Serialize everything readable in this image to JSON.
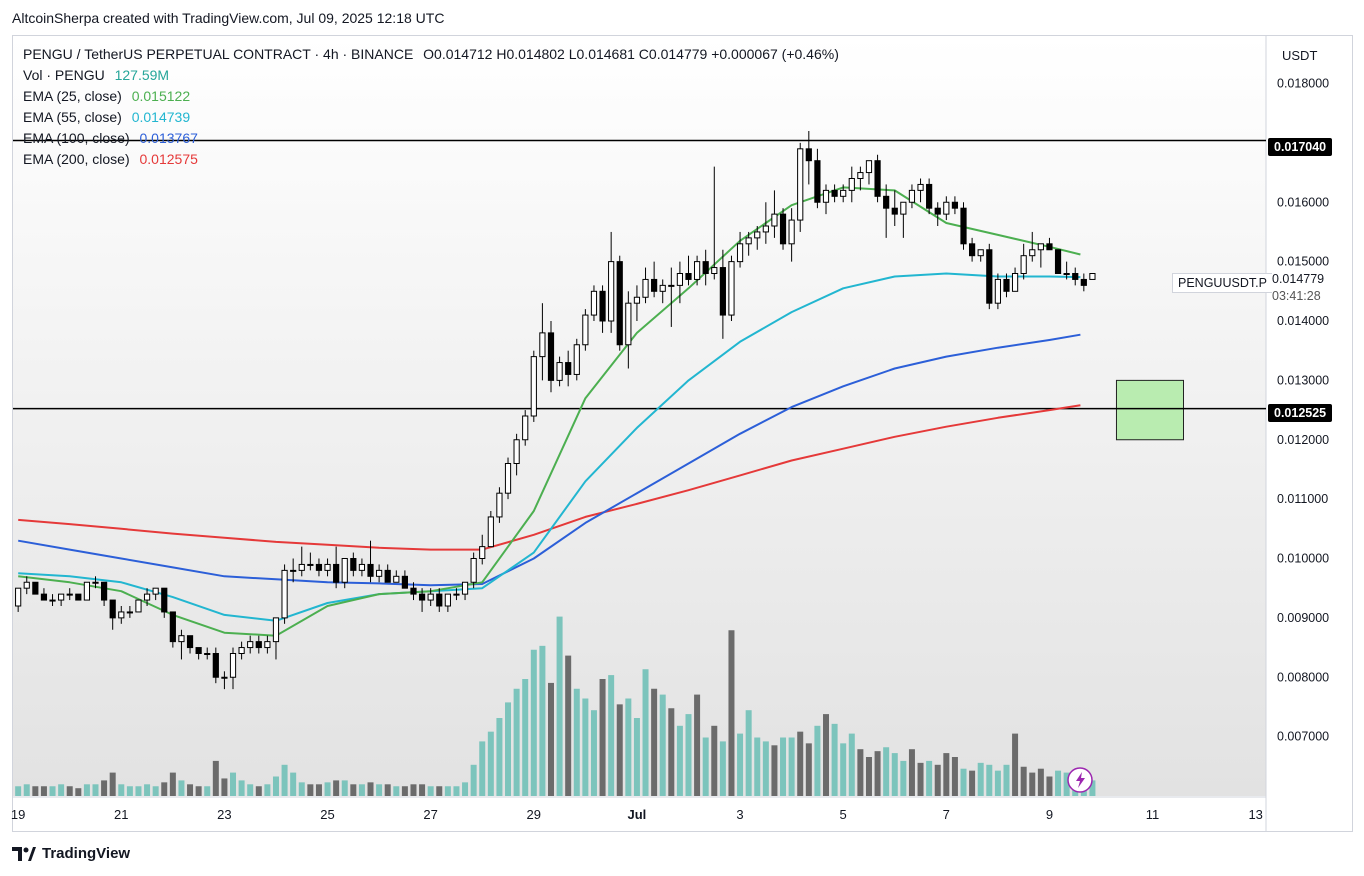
{
  "header": {
    "attribution": "AltcoinSherpa created with TradingView.com, Jul 09, 2025 12:18 UTC"
  },
  "legend": {
    "title": "PENGU / TetherUS PERPETUAL CONTRACT · 4h · BINANCE",
    "ohlc": "O0.014712  H0.014802  L0.014681  C0.014779  +0.000067 (+0.46%)",
    "volume_label": "Vol · PENGU",
    "volume_value": "127.59M",
    "ema25_label": "EMA (25, close)",
    "ema25_value": "0.015122",
    "ema55_label": "EMA (55, close)",
    "ema55_value": "0.014739",
    "ema100_label": "EMA (100, close)",
    "ema100_value": "0.013767",
    "ema200_label": "EMA (200, close)",
    "ema200_value": "0.012575"
  },
  "price_axis": {
    "unit": "USDT",
    "ticks": [
      "0.018000",
      "0.016000",
      "0.015000",
      "0.014000",
      "0.013000",
      "0.012000",
      "0.011000",
      "0.010000",
      "0.009000",
      "0.008000",
      "0.007000"
    ],
    "tick_values": [
      0.018,
      0.016,
      0.015,
      0.014,
      0.013,
      0.012,
      0.011,
      0.01,
      0.009,
      0.008,
      0.007
    ]
  },
  "tags": {
    "resistance": "0.017040",
    "support": "0.012525",
    "symbol": "PENGUUSDT.P",
    "last_price": "0.014779",
    "countdown": "03:41:28"
  },
  "footer": {
    "brand": "TradingView"
  },
  "chart_data": {
    "type": "candlestick",
    "x_ticks": [
      "19",
      "21",
      "23",
      "25",
      "27",
      "29",
      "Jul",
      "3",
      "5",
      "7",
      "9",
      "11",
      "13"
    ],
    "x_tick_days": [
      19,
      21,
      23,
      25,
      27,
      29,
      31,
      33,
      35,
      37,
      39,
      41,
      43
    ],
    "ylim": [
      0.006,
      0.0188
    ],
    "x_range_days": [
      18.9,
      43.2
    ],
    "horizontal_levels": [
      0.01704,
      0.012525
    ],
    "zone": {
      "x_days": [
        40.3,
        41.6
      ],
      "y": [
        0.012,
        0.013
      ],
      "color": "#b9ecb0"
    },
    "colors": {
      "ema25": "#4caf50",
      "ema55": "#22b6d0",
      "ema100": "#2c5fd8",
      "ema200": "#e53939",
      "vol_up": "#7cc4bc",
      "vol_down": "#6b6b6b",
      "level": "#000000"
    },
    "candles_start_day": 19.0,
    "candle_step_days": 0.16667,
    "candles": [
      [
        0.0092,
        0.0095,
        0.0091,
        0.0095
      ],
      [
        0.0095,
        0.0097,
        0.0094,
        0.0096
      ],
      [
        0.0096,
        0.0096,
        0.0094,
        0.0094
      ],
      [
        0.0094,
        0.0095,
        0.0093,
        0.0093
      ],
      [
        0.0093,
        0.0094,
        0.0092,
        0.0093
      ],
      [
        0.0093,
        0.0094,
        0.0092,
        0.0094
      ],
      [
        0.0094,
        0.0095,
        0.0093,
        0.0094
      ],
      [
        0.0094,
        0.0094,
        0.0093,
        0.0093
      ],
      [
        0.0093,
        0.0096,
        0.0093,
        0.0096
      ],
      [
        0.0096,
        0.0097,
        0.0095,
        0.0096
      ],
      [
        0.0096,
        0.0096,
        0.0092,
        0.0093
      ],
      [
        0.0093,
        0.0093,
        0.0088,
        0.009
      ],
      [
        0.009,
        0.0092,
        0.0089,
        0.0091
      ],
      [
        0.0091,
        0.0092,
        0.009,
        0.0091
      ],
      [
        0.0091,
        0.0093,
        0.0091,
        0.0093
      ],
      [
        0.0093,
        0.0095,
        0.0092,
        0.0094
      ],
      [
        0.0094,
        0.0095,
        0.0093,
        0.0095
      ],
      [
        0.0095,
        0.0095,
        0.009,
        0.0091
      ],
      [
        0.0091,
        0.0091,
        0.0085,
        0.0086
      ],
      [
        0.0086,
        0.0088,
        0.0083,
        0.0087
      ],
      [
        0.0087,
        0.0087,
        0.0084,
        0.0085
      ],
      [
        0.0085,
        0.0085,
        0.0083,
        0.0084
      ],
      [
        0.0084,
        0.0085,
        0.0083,
        0.0084
      ],
      [
        0.0084,
        0.0085,
        0.0079,
        0.008
      ],
      [
        0.008,
        0.0081,
        0.0078,
        0.008
      ],
      [
        0.008,
        0.0085,
        0.0078,
        0.0084
      ],
      [
        0.0084,
        0.0086,
        0.0083,
        0.0085
      ],
      [
        0.0085,
        0.0087,
        0.0084,
        0.0086
      ],
      [
        0.0086,
        0.0087,
        0.0084,
        0.0085
      ],
      [
        0.0085,
        0.0087,
        0.0084,
        0.0086
      ],
      [
        0.0086,
        0.009,
        0.0083,
        0.009
      ],
      [
        0.009,
        0.0099,
        0.0089,
        0.0098
      ],
      [
        0.0098,
        0.01,
        0.0096,
        0.0098
      ],
      [
        0.0098,
        0.0102,
        0.0097,
        0.0099
      ],
      [
        0.0099,
        0.0101,
        0.0098,
        0.0099
      ],
      [
        0.0099,
        0.01,
        0.0097,
        0.0098
      ],
      [
        0.0098,
        0.01,
        0.0097,
        0.0099
      ],
      [
        0.0099,
        0.0102,
        0.0095,
        0.0096
      ],
      [
        0.0096,
        0.01,
        0.0095,
        0.01
      ],
      [
        0.01,
        0.0101,
        0.0097,
        0.0098
      ],
      [
        0.0098,
        0.01,
        0.0097,
        0.0099
      ],
      [
        0.0099,
        0.0103,
        0.0096,
        0.0097
      ],
      [
        0.0097,
        0.0099,
        0.0096,
        0.0098
      ],
      [
        0.0098,
        0.0099,
        0.0096,
        0.0096
      ],
      [
        0.0096,
        0.0098,
        0.0096,
        0.0097
      ],
      [
        0.0097,
        0.0098,
        0.0095,
        0.0095
      ],
      [
        0.0095,
        0.0096,
        0.0093,
        0.0094
      ],
      [
        0.0094,
        0.0095,
        0.0091,
        0.0093
      ],
      [
        0.0093,
        0.0095,
        0.0092,
        0.0094
      ],
      [
        0.0094,
        0.0095,
        0.0091,
        0.0092
      ],
      [
        0.0092,
        0.0094,
        0.0091,
        0.0094
      ],
      [
        0.0094,
        0.0095,
        0.0093,
        0.0094
      ],
      [
        0.0094,
        0.0096,
        0.0093,
        0.0096
      ],
      [
        0.0096,
        0.0101,
        0.0095,
        0.01
      ],
      [
        0.01,
        0.0104,
        0.0099,
        0.0102
      ],
      [
        0.0102,
        0.0108,
        0.0102,
        0.0107
      ],
      [
        0.0107,
        0.0112,
        0.0106,
        0.0111
      ],
      [
        0.0111,
        0.0117,
        0.011,
        0.0116
      ],
      [
        0.0116,
        0.0121,
        0.0114,
        0.012
      ],
      [
        0.012,
        0.0125,
        0.0119,
        0.0124
      ],
      [
        0.0124,
        0.0135,
        0.0123,
        0.0134
      ],
      [
        0.0134,
        0.0143,
        0.013,
        0.0138
      ],
      [
        0.0138,
        0.014,
        0.0128,
        0.013
      ],
      [
        0.013,
        0.0134,
        0.0129,
        0.0133
      ],
      [
        0.0133,
        0.0135,
        0.0129,
        0.0131
      ],
      [
        0.0131,
        0.0137,
        0.013,
        0.0136
      ],
      [
        0.0136,
        0.0142,
        0.0135,
        0.0141
      ],
      [
        0.0141,
        0.0146,
        0.014,
        0.0145
      ],
      [
        0.0145,
        0.0146,
        0.0138,
        0.014
      ],
      [
        0.014,
        0.0155,
        0.0138,
        0.015
      ],
      [
        0.015,
        0.0151,
        0.0135,
        0.0136
      ],
      [
        0.0136,
        0.0145,
        0.0132,
        0.0143
      ],
      [
        0.0143,
        0.0146,
        0.014,
        0.0144
      ],
      [
        0.0144,
        0.0149,
        0.0143,
        0.0147
      ],
      [
        0.0147,
        0.015,
        0.0144,
        0.0145
      ],
      [
        0.0145,
        0.0147,
        0.0143,
        0.0146
      ],
      [
        0.0146,
        0.0149,
        0.0139,
        0.0146
      ],
      [
        0.0146,
        0.015,
        0.0143,
        0.0148
      ],
      [
        0.0148,
        0.0151,
        0.0146,
        0.0147
      ],
      [
        0.0147,
        0.0151,
        0.0146,
        0.015
      ],
      [
        0.015,
        0.0152,
        0.0146,
        0.0148
      ],
      [
        0.0148,
        0.0166,
        0.0147,
        0.0149
      ],
      [
        0.0149,
        0.0152,
        0.0137,
        0.0141
      ],
      [
        0.0141,
        0.0151,
        0.014,
        0.015
      ],
      [
        0.015,
        0.0155,
        0.0149,
        0.0153
      ],
      [
        0.0153,
        0.0155,
        0.0151,
        0.0154
      ],
      [
        0.0154,
        0.0156,
        0.0152,
        0.0155
      ],
      [
        0.0155,
        0.016,
        0.0153,
        0.0156
      ],
      [
        0.0156,
        0.0162,
        0.0154,
        0.0158
      ],
      [
        0.0158,
        0.0159,
        0.0152,
        0.0153
      ],
      [
        0.0153,
        0.0159,
        0.015,
        0.0157
      ],
      [
        0.0157,
        0.017,
        0.0155,
        0.0169
      ],
      [
        0.0169,
        0.0172,
        0.0163,
        0.0167
      ],
      [
        0.0167,
        0.0169,
        0.0159,
        0.016
      ],
      [
        0.016,
        0.0163,
        0.0158,
        0.0162
      ],
      [
        0.0162,
        0.0163,
        0.016,
        0.0161
      ],
      [
        0.0161,
        0.0163,
        0.016,
        0.0162
      ],
      [
        0.0162,
        0.0166,
        0.016,
        0.0164
      ],
      [
        0.0164,
        0.0166,
        0.0162,
        0.0165
      ],
      [
        0.0165,
        0.0167,
        0.0163,
        0.0167
      ],
      [
        0.0167,
        0.0168,
        0.016,
        0.0161
      ],
      [
        0.0161,
        0.0163,
        0.0154,
        0.0159
      ],
      [
        0.0159,
        0.0162,
        0.0156,
        0.0158
      ],
      [
        0.0158,
        0.016,
        0.0154,
        0.016
      ],
      [
        0.016,
        0.0163,
        0.0159,
        0.0162
      ],
      [
        0.0162,
        0.0164,
        0.016,
        0.0163
      ],
      [
        0.0163,
        0.0164,
        0.0158,
        0.0159
      ],
      [
        0.0159,
        0.016,
        0.0156,
        0.0158
      ],
      [
        0.0158,
        0.0161,
        0.0157,
        0.016
      ],
      [
        0.016,
        0.0161,
        0.0158,
        0.0159
      ],
      [
        0.0159,
        0.016,
        0.0152,
        0.0153
      ],
      [
        0.0153,
        0.0154,
        0.015,
        0.0151
      ],
      [
        0.0151,
        0.0152,
        0.015,
        0.0152
      ],
      [
        0.0152,
        0.0153,
        0.0142,
        0.0143
      ],
      [
        0.0143,
        0.0148,
        0.0142,
        0.0147
      ],
      [
        0.0147,
        0.0148,
        0.0144,
        0.0145
      ],
      [
        0.0145,
        0.0149,
        0.0145,
        0.0148
      ],
      [
        0.0148,
        0.0153,
        0.0147,
        0.0151
      ],
      [
        0.0151,
        0.0155,
        0.015,
        0.0152
      ],
      [
        0.0152,
        0.0153,
        0.0149,
        0.0153
      ],
      [
        0.0153,
        0.0154,
        0.0152,
        0.0152
      ],
      [
        0.0152,
        0.0152,
        0.0148,
        0.0148
      ],
      [
        0.0148,
        0.015,
        0.0147,
        0.0148
      ],
      [
        0.0148,
        0.0149,
        0.0146,
        0.0147
      ],
      [
        0.0147,
        0.0148,
        0.0145,
        0.0146
      ],
      [
        0.0147,
        0.0148,
        0.0147,
        0.0148
      ]
    ],
    "volumes_relative": [
      0.05,
      0.06,
      0.05,
      0.05,
      0.05,
      0.06,
      0.05,
      0.04,
      0.06,
      0.06,
      0.08,
      0.12,
      0.06,
      0.05,
      0.05,
      0.06,
      0.05,
      0.07,
      0.12,
      0.08,
      0.06,
      0.05,
      0.05,
      0.18,
      0.09,
      0.12,
      0.08,
      0.06,
      0.05,
      0.06,
      0.1,
      0.16,
      0.12,
      0.07,
      0.06,
      0.06,
      0.07,
      0.08,
      0.08,
      0.06,
      0.06,
      0.07,
      0.06,
      0.06,
      0.05,
      0.05,
      0.06,
      0.06,
      0.05,
      0.05,
      0.05,
      0.05,
      0.07,
      0.16,
      0.28,
      0.33,
      0.4,
      0.48,
      0.55,
      0.6,
      0.75,
      0.77,
      0.58,
      0.92,
      0.72,
      0.55,
      0.5,
      0.44,
      0.6,
      0.62,
      0.47,
      0.5,
      0.4,
      0.65,
      0.55,
      0.52,
      0.45,
      0.36,
      0.42,
      0.52,
      0.3,
      0.36,
      0.28,
      0.85,
      0.32,
      0.44,
      0.3,
      0.28,
      0.26,
      0.3,
      0.3,
      0.33,
      0.27,
      0.36,
      0.42,
      0.37,
      0.27,
      0.32,
      0.24,
      0.2,
      0.23,
      0.25,
      0.22,
      0.18,
      0.24,
      0.17,
      0.18,
      0.16,
      0.22,
      0.2,
      0.14,
      0.13,
      0.17,
      0.16,
      0.13,
      0.16,
      0.32,
      0.15,
      0.12,
      0.14,
      0.1,
      0.13,
      0.12,
      0.08,
      0.06,
      0.08
    ],
    "volumes_down": [
      0,
      0,
      1,
      1,
      0,
      0,
      1,
      1,
      0,
      0,
      1,
      1,
      0,
      0,
      0,
      0,
      0,
      1,
      1,
      0,
      1,
      1,
      0,
      1,
      1,
      0,
      0,
      0,
      1,
      0,
      0,
      0,
      0,
      0,
      1,
      1,
      0,
      1,
      0,
      1,
      0,
      1,
      0,
      1,
      0,
      1,
      1,
      1,
      0,
      1,
      0,
      0,
      0,
      0,
      0,
      0,
      0,
      0,
      0,
      0,
      0,
      0,
      1,
      0,
      1,
      0,
      0,
      0,
      1,
      0,
      1,
      0,
      0,
      0,
      1,
      0,
      1,
      0,
      0,
      1,
      0,
      1,
      0,
      1,
      0,
      0,
      0,
      0,
      1,
      0,
      0,
      1,
      1,
      0,
      1,
      0,
      0,
      0,
      1,
      1,
      1,
      0,
      0,
      0,
      1,
      1,
      0,
      1,
      1,
      1,
      0,
      1,
      0,
      0,
      0,
      0,
      1,
      1,
      1,
      1,
      1,
      0
    ],
    "ema_series_days": [
      19,
      20,
      21,
      22,
      23,
      24,
      25,
      26,
      27,
      28,
      29,
      30,
      31,
      32,
      33,
      34,
      35,
      36,
      37,
      38,
      39,
      39.6
    ],
    "ema25": [
      0.0097,
      0.0096,
      0.00945,
      0.00905,
      0.00875,
      0.0087,
      0.0092,
      0.0094,
      0.00945,
      0.0096,
      0.0108,
      0.0127,
      0.0138,
      0.01455,
      0.01535,
      0.01595,
      0.01625,
      0.0162,
      0.01565,
      0.01545,
      0.01525,
      0.01512
    ],
    "ema55": [
      0.00975,
      0.0097,
      0.0096,
      0.00935,
      0.00905,
      0.00895,
      0.00925,
      0.0094,
      0.00945,
      0.0095,
      0.0101,
      0.0113,
      0.0122,
      0.013,
      0.01365,
      0.01415,
      0.01455,
      0.01475,
      0.0148,
      0.01475,
      0.01475,
      0.01474
    ],
    "ema100": [
      0.0103,
      0.01015,
      0.01,
      0.00985,
      0.0097,
      0.00965,
      0.0096,
      0.00958,
      0.00955,
      0.00957,
      0.01,
      0.0106,
      0.0111,
      0.0116,
      0.0121,
      0.01255,
      0.0129,
      0.0132,
      0.0134,
      0.01355,
      0.01368,
      0.01377
    ],
    "ema200": [
      0.01065,
      0.01058,
      0.0105,
      0.01042,
      0.01035,
      0.01028,
      0.01023,
      0.01018,
      0.01015,
      0.01015,
      0.0104,
      0.0107,
      0.01092,
      0.01115,
      0.0114,
      0.01165,
      0.01185,
      0.01205,
      0.01222,
      0.01237,
      0.0125,
      0.01258
    ]
  }
}
